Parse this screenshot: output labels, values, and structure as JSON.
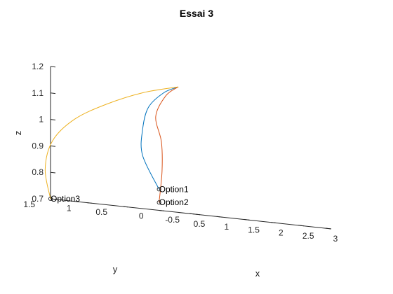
{
  "chart_data": {
    "type": "line3d",
    "title": "Essai 3",
    "xlabel": "x",
    "ylabel": "y",
    "zlabel": "z",
    "xlim": [
      0.5,
      3
    ],
    "ylim": [
      -0.5,
      1.5
    ],
    "zlim": [
      0.7,
      1.2
    ],
    "x_ticks": [
      0.5,
      1,
      1.5,
      2,
      2.5,
      3
    ],
    "y_ticks": [
      -0.5,
      0,
      0.5,
      1,
      1.5
    ],
    "z_ticks": [
      0.7,
      0.8,
      0.9,
      1,
      1.1,
      1.2
    ],
    "x_tick_labels": [
      "0.5",
      "1",
      "1.5",
      "2",
      "2.5",
      "3"
    ],
    "y_tick_labels": [
      "-0.5",
      "0",
      "0.5",
      "1",
      "1.5"
    ],
    "z_tick_labels": [
      "0.7",
      "0.8",
      "0.9",
      "1",
      "1.1",
      "1.2"
    ],
    "grid": false,
    "series": [
      {
        "color": "#0072BD",
        "x": [
          0.9,
          1.3,
          1.7,
          2.1,
          2.5,
          2.78
        ],
        "y": [
          0.3,
          0.83,
          1.13,
          1.35,
          1.44,
          1.45
        ],
        "z": [
          0.78,
          0.902,
          1.0,
          1.086,
          1.147,
          1.175
        ]
      },
      {
        "color": "#D95319",
        "x": [
          0.9,
          1.3,
          1.7,
          2.1,
          2.5,
          2.78
        ],
        "y": [
          0.3,
          0.56,
          0.87,
          1.25,
          1.41,
          1.45
        ],
        "z": [
          0.73,
          0.85,
          0.96,
          1.054,
          1.137,
          1.175
        ]
      },
      {
        "color": "#EDB120",
        "x": [
          0.5,
          0.8,
          1.2,
          1.6,
          2.0,
          2.4,
          2.78
        ],
        "y": [
          1.5,
          1.8,
          2.0,
          2.0,
          1.86,
          1.65,
          1.45
        ],
        "z": [
          0.7,
          0.81,
          0.92,
          1.01,
          1.08,
          1.139,
          1.175
        ]
      }
    ],
    "annotations": [
      {
        "text": "Option1",
        "x": 0.9,
        "y": 0.3,
        "z": 0.78
      },
      {
        "text": "Option2",
        "x": 0.9,
        "y": 0.3,
        "z": 0.73
      },
      {
        "text": "Option3",
        "x": 0.5,
        "y": 1.5,
        "z": 0.7
      }
    ]
  }
}
